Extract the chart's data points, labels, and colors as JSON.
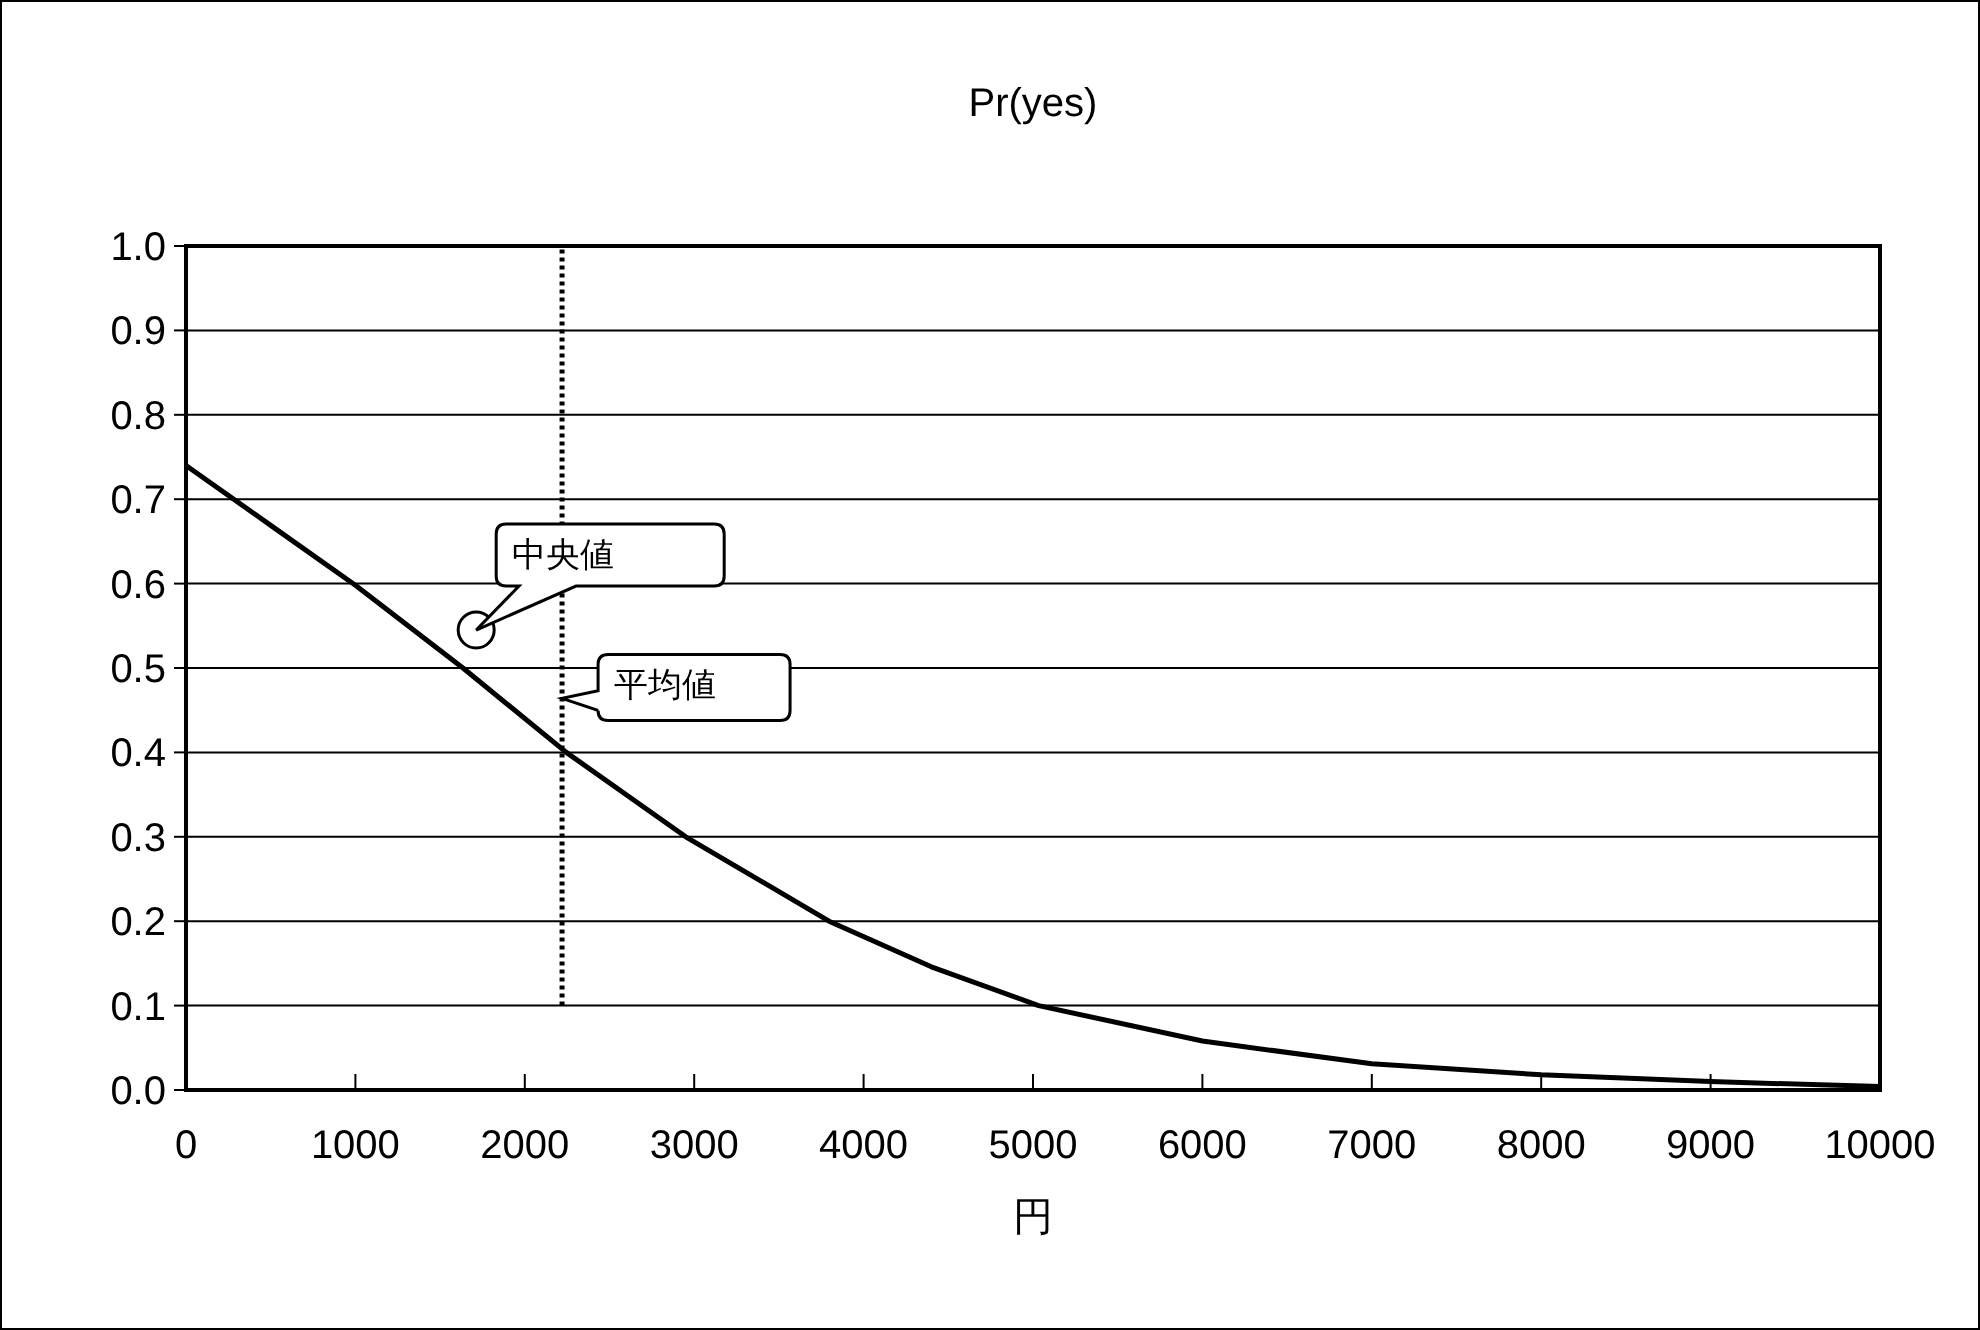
{
  "chart_data": {
    "type": "line",
    "title": "Pr(yes)",
    "xlabel": "円",
    "xlim": [
      0,
      10000
    ],
    "xticks": [
      0,
      1000,
      2000,
      3000,
      4000,
      5000,
      6000,
      7000,
      8000,
      9000,
      10000
    ],
    "ylim": [
      0,
      1.0
    ],
    "yticks": [
      {
        "value": 0,
        "label": "0.0"
      },
      {
        "value": 0.1,
        "label": "0.1"
      },
      {
        "value": 0.2,
        "label": "0.2"
      },
      {
        "value": 0.3,
        "label": "0.3"
      },
      {
        "value": 0.4,
        "label": "0.4"
      },
      {
        "value": 0.5,
        "label": "0.5"
      },
      {
        "value": 0.6,
        "label": "0.6"
      },
      {
        "value": 0.7,
        "label": "0.7"
      },
      {
        "value": 0.8,
        "label": "0.8"
      },
      {
        "value": 0.9,
        "label": "0.9"
      },
      {
        "value": 1.0,
        "label": "1.0"
      }
    ],
    "grid": "y",
    "series": [
      {
        "type": "line",
        "color": "#000000",
        "line_style": "solid",
        "marker": "none",
        "x": [
          0,
          500,
          1000,
          1635,
          2245,
          2950,
          3796,
          4400,
          5033,
          6000,
          7000,
          8000,
          9000,
          10000
        ],
        "values": [
          0.74,
          0.669,
          0.598,
          0.5,
          0.4,
          0.3,
          0.2,
          0.146,
          0.1,
          0.058,
          0.031,
          0.018,
          0.01,
          0.004
        ]
      },
      {
        "type": "line",
        "color": "#000000",
        "line_style": "dotted",
        "marker": "none",
        "x": [
          2220,
          2220
        ],
        "values": [
          0.1,
          1.0
        ]
      },
      {
        "type": "scatter",
        "color": "#000000",
        "marker": "circle",
        "x": [
          1713
        ],
        "values": [
          0.545
        ]
      }
    ],
    "annotations": [
      {
        "text": "中央値",
        "x": 1713,
        "y": 0.545
      },
      {
        "text": "平均値",
        "x": 2220,
        "y": 0.464
      }
    ]
  }
}
